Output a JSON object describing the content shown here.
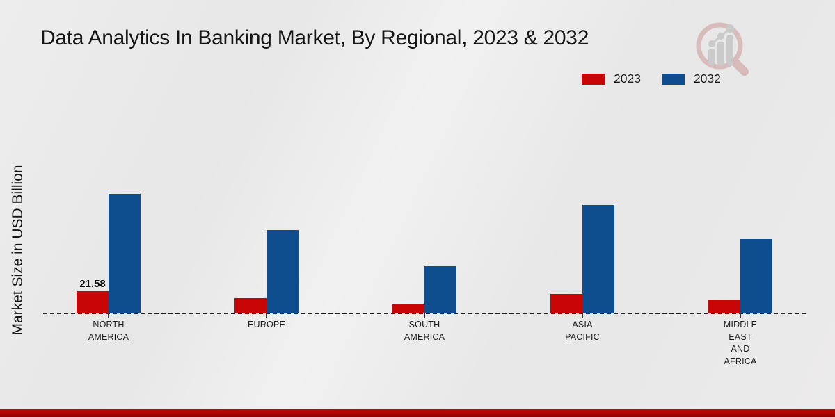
{
  "page": {
    "title": "Data Analytics In Banking Market, By Regional, 2023 & 2032",
    "ylabel": "Market Size in USD Billion"
  },
  "legend": {
    "items": [
      {
        "label": "2023",
        "color": "#c70605"
      },
      {
        "label": "2032",
        "color": "#0e4d8e"
      }
    ]
  },
  "logo": {
    "name": "bar-chart-magnifier-logo"
  },
  "chart_data": {
    "type": "bar",
    "title": "Data Analytics In Banking Market, By Regional, 2023 & 2032",
    "ylabel": "Market Size in USD Billion",
    "unit": "USD Billion",
    "categories": [
      "NORTH AMERICA",
      "EUROPE",
      "SOUTH AMERICA",
      "ASIA PACIFIC",
      "MIDDLE EAST AND AFRICA"
    ],
    "category_label_lines": [
      [
        "NORTH",
        "AMERICA"
      ],
      [
        "EUROPE"
      ],
      [
        "SOUTH",
        "AMERICA"
      ],
      [
        "ASIA",
        "PACIFIC"
      ],
      [
        "MIDDLE",
        "EAST",
        "AND",
        "AFRICA"
      ]
    ],
    "series": [
      {
        "name": "2023",
        "color": "#c70605",
        "values": [
          21.58,
          15,
          9,
          19,
          13
        ]
      },
      {
        "name": "2032",
        "color": "#0e4d8e",
        "values": [
          116,
          81,
          46,
          105,
          72
        ]
      }
    ],
    "data_labels": [
      {
        "series": "2023",
        "category": "NORTH AMERICA",
        "text": "21.58"
      }
    ],
    "ylim": [
      0,
      125
    ],
    "grid": false,
    "baseline_style": "dashed",
    "legend_position": "top-right"
  },
  "colors": {
    "series_2023": "#c70605",
    "series_2032": "#0e4d8e",
    "footer_bar": "#a50505",
    "background": "#eaeaea"
  }
}
